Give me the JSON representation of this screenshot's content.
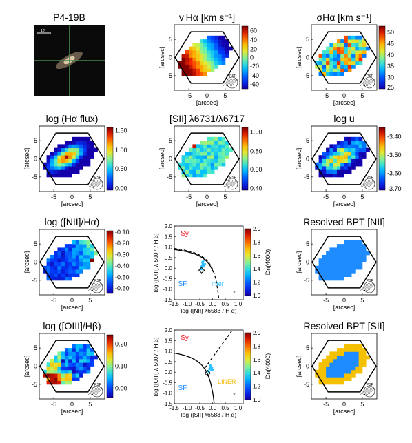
{
  "panels": {
    "thumb": {
      "title": "P4-19B",
      "scale_label": "10\""
    },
    "vel": {
      "title": "v Hα [km s⁻¹]",
      "ticks": [
        "60",
        "40",
        "20",
        "0",
        "-20",
        "-40",
        "-60"
      ]
    },
    "sig": {
      "title": "σHα [km s⁻¹]",
      "ticks": [
        "50",
        "45",
        "40",
        "35",
        "30",
        "25"
      ]
    },
    "flux": {
      "title": "log (Hα flux)",
      "ticks": [
        "1.50",
        "1.00",
        "0.50",
        "0.00"
      ]
    },
    "sii_ratio": {
      "title": "[SII] λ6731/λ6717",
      "ticks": [
        "1.00",
        "0.80",
        "0.60",
        "0.40"
      ]
    },
    "logu": {
      "title": "log u",
      "ticks": [
        "-3.40",
        "-3.50",
        "-3.60",
        "-3.70"
      ]
    },
    "nii": {
      "title": "log ([NII]/Hα)",
      "ticks": [
        "-0.10",
        "-0.20",
        "-0.30",
        "-0.40",
        "-0.50",
        "-0.60"
      ]
    },
    "bpt_nii": {
      "ylabel": "log ([OIII] λ 5007 / H β)",
      "xlabel": "log ([NII] λ6583 / H α)",
      "region_sy": "Sy",
      "region_sf": "SF",
      "region_inter": "Inter",
      "cbar_label": "Dn(4000)"
    },
    "res_nii": {
      "title": "Resolved BPT [NII]"
    },
    "oiii": {
      "title": "log ([OIII]/Hβ)",
      "ticks": [
        "0.20",
        "0.10",
        "0.00"
      ]
    },
    "bpt_sii": {
      "ylabel": "log ([OIII] λ 5007 / H β)",
      "xlabel": "log ([SII] λ6583 / H α)",
      "region_sy": "Sy",
      "region_sf": "SF",
      "region_liner": "LINER",
      "cbar_label": "Dn(4000)"
    },
    "res_sii": {
      "title": "Resolved BPT [SII]"
    }
  },
  "map_axes": {
    "xlabel": "[arcsec]",
    "ylabel": "[arcsec]",
    "xticks": [
      "-5",
      "0",
      "5"
    ],
    "yticks": [
      "5",
      "0",
      "-5"
    ],
    "psf_label": "PSF"
  },
  "bpt_axes": {
    "xticks": [
      "-1.5",
      "-1.0",
      "-0.5",
      "0.0",
      "0.5",
      "1.0"
    ],
    "yticks": [
      "2.0",
      "1.5",
      "1.0",
      "0.5",
      "0.0",
      "-0.5",
      "-1.0",
      "-1.5"
    ],
    "cbar_ticks": [
      "2.0",
      "1.8",
      "1.6",
      "1.4",
      "1.2",
      "1.0"
    ]
  },
  "chart_data": [
    {
      "type": "scatter",
      "xlabel": "log ([NII] λ6583 / H α)",
      "ylabel": "log ([OIII] λ 5007 / H β)",
      "xlim": [
        -1.5,
        1.2
      ],
      "ylim": [
        -1.5,
        2.0
      ],
      "clim": [
        1.0,
        2.0
      ],
      "x": [
        -0.45,
        -0.42,
        -0.38,
        -0.35,
        -0.33,
        -0.4,
        -0.36,
        -0.3,
        -0.44,
        -0.39
      ],
      "y": [
        0.05,
        0.12,
        0.2,
        0.15,
        0.08,
        0.28,
        0.32,
        0.18,
        -0.05,
        0.22
      ],
      "integrated": {
        "x": -0.43,
        "y": -0.1
      },
      "error_marker": {
        "x": 0.85,
        "y": -1.2
      }
    },
    {
      "type": "scatter",
      "xlabel": "log ([SII] λ6583 / H α)",
      "ylabel": "log ([OIII] λ 5007 / H β)",
      "xlim": [
        -1.5,
        1.2
      ],
      "ylim": [
        -1.5,
        2.0
      ],
      "clim": [
        1.0,
        2.0
      ],
      "x": [
        -0.18,
        -0.12,
        -0.08,
        -0.05,
        -0.1,
        -0.02,
        -0.14,
        -0.06,
        0.0,
        -0.09
      ],
      "y": [
        0.05,
        0.15,
        0.2,
        0.1,
        0.25,
        0.18,
        0.0,
        0.28,
        0.12,
        0.32
      ],
      "integrated": {
        "x": -0.2,
        "y": -0.05
      },
      "error_marker": {
        "x": 0.85,
        "y": -1.1
      }
    }
  ]
}
